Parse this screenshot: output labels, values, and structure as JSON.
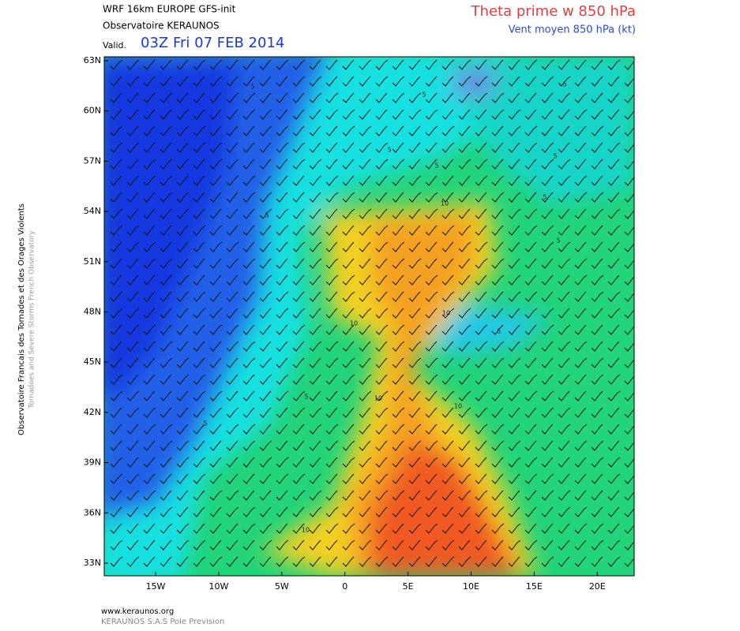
{
  "header": {
    "model": "WRF 16km EUROPE  GFS-init",
    "observatory": "Observatoire KERAUNOS",
    "valid_prefix": "Valid.",
    "valid_time": "03Z Fri 07 FEB 2014",
    "parameter": "Theta prime w 850 hPa",
    "wind": "Vent moyen 850 hPa (kt)"
  },
  "side": {
    "french": "Observatoire Francais des Tornades et des Orages Violents",
    "english": "Tornadoes and Severe Storms French Observatory"
  },
  "map": {
    "lat_labels": [
      "63N",
      "60N",
      "57N",
      "54N",
      "51N",
      "48N",
      "45N",
      "42N",
      "39N",
      "36N",
      "33N"
    ],
    "lon_labels": [
      "15W",
      "10W",
      "5W",
      "0",
      "5E",
      "10E",
      "15E",
      "20E"
    ],
    "contour_labels": [
      "5",
      "5",
      "5",
      "5",
      "5",
      "5",
      "5",
      "5",
      "5",
      "5",
      "5",
      "5",
      "10",
      "10",
      "10",
      "10",
      "10",
      "10"
    ]
  },
  "footer": {
    "site": "www.keraunos.org",
    "company": "KERAUNOS S.A.S Pole Prevision"
  }
}
